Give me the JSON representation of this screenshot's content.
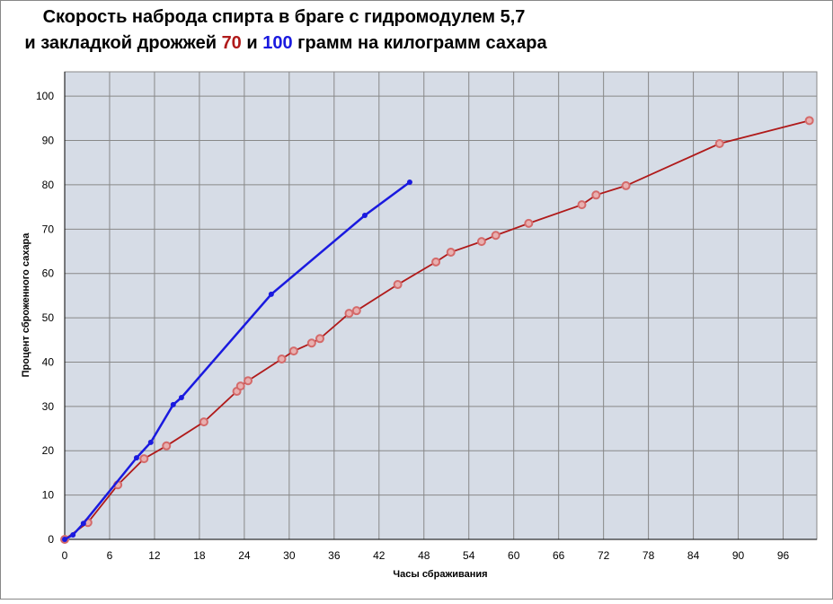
{
  "chart_data": {
    "type": "line",
    "title": "Скорость наброда спирта в браге с гидромодулем 5,7",
    "title_line2_parts": [
      "и закладкой дрожжей",
      "и",
      "грамм на килограмм сахара"
    ],
    "x_label": "Часы сбраживания",
    "y_label": "Процент сброженного сахара",
    "xlim": [
      0,
      100.5
    ],
    "ylim": [
      0,
      105.5
    ],
    "xticks": [
      0,
      6,
      12,
      18,
      24,
      30,
      36,
      42,
      48,
      54,
      60,
      66,
      72,
      78,
      84,
      90,
      96
    ],
    "yticks": [
      0,
      10,
      20,
      30,
      40,
      50,
      60,
      70,
      80,
      90,
      100
    ],
    "grid": true,
    "series": [
      {
        "name": "70",
        "color": "#b01a1a",
        "x": [
          0,
          3.1,
          7.1,
          10.6,
          13.6,
          18.6,
          23.0,
          23.5,
          24.5,
          29.0,
          30.6,
          33.0,
          34.1,
          38.0,
          39.0,
          44.5,
          49.6,
          51.6,
          55.7,
          57.6,
          62.0,
          69.1,
          71.0,
          75.0,
          87.5,
          99.5
        ],
        "values": [
          0,
          3.8,
          12.3,
          18.2,
          21.1,
          26.5,
          33.4,
          34.6,
          35.8,
          40.7,
          42.5,
          44.3,
          45.3,
          51.0,
          51.6,
          57.5,
          62.6,
          64.8,
          67.2,
          68.6,
          71.3,
          75.5,
          77.7,
          79.8,
          89.3,
          94.5
        ]
      },
      {
        "name": "100",
        "color": "#1a1adf",
        "x": [
          0,
          1.1,
          2.5,
          9.6,
          11.5,
          14.5,
          15.6,
          27.6,
          40.1,
          46.1
        ],
        "values": [
          0,
          1.0,
          3.6,
          18.4,
          21.9,
          30.4,
          32.0,
          55.3,
          73.1,
          80.6
        ]
      }
    ]
  }
}
